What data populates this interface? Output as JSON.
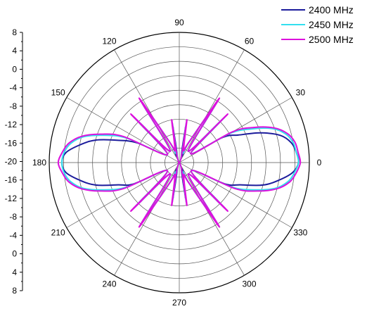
{
  "chart_data": {
    "type": "polar-line",
    "title": "",
    "angle_labels": [
      "0",
      "30",
      "60",
      "90",
      "120",
      "150",
      "180",
      "210",
      "240",
      "270",
      "300",
      "330"
    ],
    "angle_units": "degrees",
    "radial_range": [
      -28,
      8
    ],
    "radial_ring_step": 4,
    "radial_axis_tick_labels": [
      "8",
      "4",
      "0",
      "-4",
      "-8",
      "-12",
      "-16",
      "-20",
      "-16",
      "-12",
      "-8",
      "-4",
      "0",
      "4",
      "8"
    ],
    "grid": true,
    "legend_position": "top-right",
    "series": [
      {
        "name": "2400 MHz",
        "color": "#1c1c9c",
        "angles": [
          0,
          5,
          10,
          15,
          20,
          25,
          30,
          38,
          45,
          52,
          58,
          65,
          72,
          80,
          90,
          100,
          108,
          115,
          122,
          128,
          135,
          145,
          155,
          160,
          165,
          170,
          175,
          180,
          185,
          190,
          195,
          200,
          205,
          215,
          225,
          232,
          238,
          245,
          252,
          260,
          270,
          280,
          288,
          295,
          302,
          308,
          315,
          325,
          335,
          340,
          345,
          350,
          355
        ],
        "values": [
          5,
          4.5,
          3.5,
          1,
          -4,
          -10,
          -14,
          -24,
          -12,
          -24,
          -10,
          -22,
          -26,
          -18,
          -28,
          -18,
          -26,
          -22,
          -9,
          -24,
          -12,
          -24,
          -15,
          -10,
          -4,
          0,
          3.5,
          4.5,
          3.5,
          0,
          -4,
          -10,
          -14,
          -24,
          -12,
          -24,
          -10,
          -22,
          -26,
          -18,
          -28,
          -18,
          -26,
          -22,
          -10,
          -24,
          -12,
          -24,
          -14,
          -10,
          -4,
          0,
          3.5
        ]
      },
      {
        "name": "2450 MHz",
        "color": "#33dfef",
        "angles": [
          0,
          5,
          10,
          15,
          20,
          25,
          30,
          38,
          45,
          52,
          58,
          65,
          72,
          80,
          90,
          100,
          108,
          115,
          122,
          128,
          135,
          145,
          155,
          160,
          165,
          170,
          175,
          180,
          185,
          190,
          195,
          200,
          205,
          215,
          225,
          232,
          238,
          245,
          252,
          260,
          270,
          280,
          288,
          295,
          302,
          308,
          315,
          325,
          335,
          340,
          345,
          350,
          355
        ],
        "values": [
          5,
          4.5,
          4,
          2.5,
          -0.5,
          -6,
          -12,
          -24,
          -10,
          -24,
          -8,
          -22,
          -25,
          -17,
          -28,
          -17,
          -25,
          -22,
          -8,
          -24,
          -10,
          -24,
          -12,
          -6,
          -0.5,
          2.5,
          4,
          4.5,
          4,
          2.5,
          -0.5,
          -6,
          -12,
          -24,
          -10,
          -24,
          -8,
          -22,
          -25,
          -17,
          -28,
          -17,
          -25,
          -22,
          -8,
          -24,
          -10,
          -24,
          -12,
          -6,
          -0.5,
          2.5,
          4
        ]
      },
      {
        "name": "2500 MHz",
        "color": "#dd11dd",
        "angles": [
          0,
          5,
          10,
          15,
          20,
          25,
          30,
          38,
          45,
          52,
          58,
          65,
          72,
          80,
          90,
          100,
          108,
          115,
          122,
          128,
          135,
          145,
          155,
          160,
          165,
          170,
          175,
          180,
          185,
          190,
          195,
          200,
          205,
          215,
          225,
          232,
          238,
          245,
          252,
          260,
          270,
          280,
          288,
          295,
          302,
          308,
          315,
          325,
          335,
          340,
          345,
          350,
          355
        ],
        "values": [
          5.5,
          5,
          4.5,
          3,
          0,
          -5,
          -11,
          -24,
          -9,
          -24,
          -7,
          -22,
          -24,
          -16,
          -28,
          -16,
          -24,
          -22,
          -7,
          -24,
          -9,
          -24,
          -11,
          -5,
          0,
          3,
          4.5,
          5.5,
          4.5,
          3,
          0,
          -5,
          -11,
          -24,
          -9,
          -24,
          -7,
          -22,
          -24,
          -16,
          -28,
          -16,
          -24,
          -22,
          -7,
          -24,
          -9,
          -24,
          -11,
          -5,
          0,
          3,
          4.5
        ]
      }
    ]
  }
}
